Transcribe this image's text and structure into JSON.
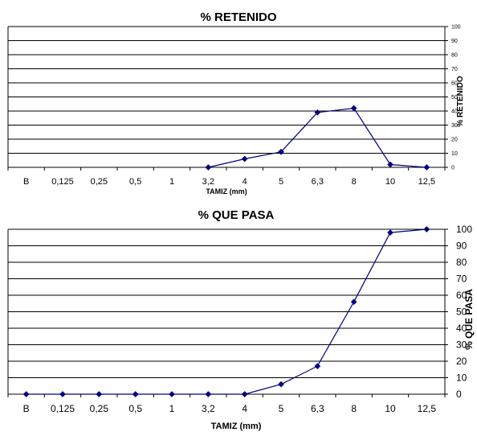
{
  "chart_data": [
    {
      "type": "line",
      "title": "% RETENIDO",
      "xlabel": "TAMIZ (mm)",
      "ylabel": "% RETENIDO",
      "categories": [
        "B",
        "0,125",
        "0,25",
        "0,5",
        "1",
        "3,2",
        "4",
        "5",
        "6,3",
        "8",
        "10",
        "12,5"
      ],
      "series": [
        {
          "values": [
            null,
            null,
            null,
            null,
            null,
            0,
            6,
            11,
            39,
            42,
            2,
            0
          ]
        }
      ],
      "ylim": [
        0,
        100
      ],
      "yticks": [
        0,
        10,
        20,
        30,
        40,
        50,
        60,
        70,
        80,
        90,
        100
      ],
      "grid": true,
      "legend": "none",
      "color": "#000080"
    },
    {
      "type": "line",
      "title": "% QUE PASA",
      "xlabel": "TAMIZ (mm)",
      "ylabel": "% QUE PASA",
      "categories": [
        "B",
        "0,125",
        "0,25",
        "0,5",
        "1",
        "3,2",
        "4",
        "5",
        "6,3",
        "8",
        "10",
        "12,5"
      ],
      "series": [
        {
          "values": [
            0,
            0,
            0,
            0,
            0,
            0,
            0,
            6,
            17,
            56,
            98,
            100
          ]
        }
      ],
      "ylim": [
        0,
        100
      ],
      "yticks": [
        0,
        10,
        20,
        30,
        40,
        50,
        60,
        70,
        80,
        90,
        100
      ],
      "grid": true,
      "legend": "none",
      "color": "#000080"
    }
  ]
}
